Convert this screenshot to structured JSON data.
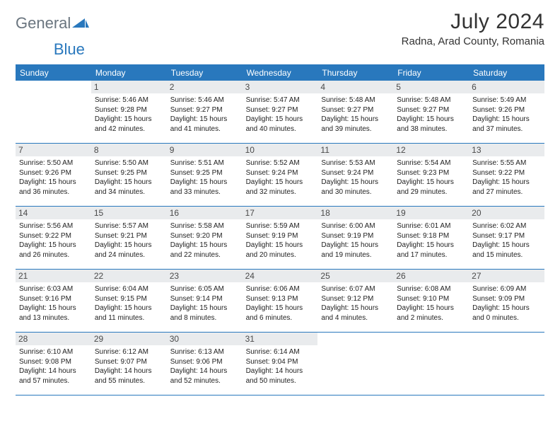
{
  "logo": {
    "text1": "General",
    "text2": "Blue"
  },
  "title": "July 2024",
  "location": "Radna, Arad County, Romania",
  "colors": {
    "accent": "#2978bd",
    "dayHeaderBg": "#e9ebed",
    "text": "#333333",
    "logoGray": "#6a757f"
  },
  "daysOfWeek": [
    "Sunday",
    "Monday",
    "Tuesday",
    "Wednesday",
    "Thursday",
    "Friday",
    "Saturday"
  ],
  "weeks": [
    [
      {
        "n": "",
        "lines": []
      },
      {
        "n": "1",
        "lines": [
          "Sunrise: 5:46 AM",
          "Sunset: 9:28 PM",
          "Daylight: 15 hours",
          "and 42 minutes."
        ]
      },
      {
        "n": "2",
        "lines": [
          "Sunrise: 5:46 AM",
          "Sunset: 9:27 PM",
          "Daylight: 15 hours",
          "and 41 minutes."
        ]
      },
      {
        "n": "3",
        "lines": [
          "Sunrise: 5:47 AM",
          "Sunset: 9:27 PM",
          "Daylight: 15 hours",
          "and 40 minutes."
        ]
      },
      {
        "n": "4",
        "lines": [
          "Sunrise: 5:48 AM",
          "Sunset: 9:27 PM",
          "Daylight: 15 hours",
          "and 39 minutes."
        ]
      },
      {
        "n": "5",
        "lines": [
          "Sunrise: 5:48 AM",
          "Sunset: 9:27 PM",
          "Daylight: 15 hours",
          "and 38 minutes."
        ]
      },
      {
        "n": "6",
        "lines": [
          "Sunrise: 5:49 AM",
          "Sunset: 9:26 PM",
          "Daylight: 15 hours",
          "and 37 minutes."
        ]
      }
    ],
    [
      {
        "n": "7",
        "lines": [
          "Sunrise: 5:50 AM",
          "Sunset: 9:26 PM",
          "Daylight: 15 hours",
          "and 36 minutes."
        ]
      },
      {
        "n": "8",
        "lines": [
          "Sunrise: 5:50 AM",
          "Sunset: 9:25 PM",
          "Daylight: 15 hours",
          "and 34 minutes."
        ]
      },
      {
        "n": "9",
        "lines": [
          "Sunrise: 5:51 AM",
          "Sunset: 9:25 PM",
          "Daylight: 15 hours",
          "and 33 minutes."
        ]
      },
      {
        "n": "10",
        "lines": [
          "Sunrise: 5:52 AM",
          "Sunset: 9:24 PM",
          "Daylight: 15 hours",
          "and 32 minutes."
        ]
      },
      {
        "n": "11",
        "lines": [
          "Sunrise: 5:53 AM",
          "Sunset: 9:24 PM",
          "Daylight: 15 hours",
          "and 30 minutes."
        ]
      },
      {
        "n": "12",
        "lines": [
          "Sunrise: 5:54 AM",
          "Sunset: 9:23 PM",
          "Daylight: 15 hours",
          "and 29 minutes."
        ]
      },
      {
        "n": "13",
        "lines": [
          "Sunrise: 5:55 AM",
          "Sunset: 9:22 PM",
          "Daylight: 15 hours",
          "and 27 minutes."
        ]
      }
    ],
    [
      {
        "n": "14",
        "lines": [
          "Sunrise: 5:56 AM",
          "Sunset: 9:22 PM",
          "Daylight: 15 hours",
          "and 26 minutes."
        ]
      },
      {
        "n": "15",
        "lines": [
          "Sunrise: 5:57 AM",
          "Sunset: 9:21 PM",
          "Daylight: 15 hours",
          "and 24 minutes."
        ]
      },
      {
        "n": "16",
        "lines": [
          "Sunrise: 5:58 AM",
          "Sunset: 9:20 PM",
          "Daylight: 15 hours",
          "and 22 minutes."
        ]
      },
      {
        "n": "17",
        "lines": [
          "Sunrise: 5:59 AM",
          "Sunset: 9:19 PM",
          "Daylight: 15 hours",
          "and 20 minutes."
        ]
      },
      {
        "n": "18",
        "lines": [
          "Sunrise: 6:00 AM",
          "Sunset: 9:19 PM",
          "Daylight: 15 hours",
          "and 19 minutes."
        ]
      },
      {
        "n": "19",
        "lines": [
          "Sunrise: 6:01 AM",
          "Sunset: 9:18 PM",
          "Daylight: 15 hours",
          "and 17 minutes."
        ]
      },
      {
        "n": "20",
        "lines": [
          "Sunrise: 6:02 AM",
          "Sunset: 9:17 PM",
          "Daylight: 15 hours",
          "and 15 minutes."
        ]
      }
    ],
    [
      {
        "n": "21",
        "lines": [
          "Sunrise: 6:03 AM",
          "Sunset: 9:16 PM",
          "Daylight: 15 hours",
          "and 13 minutes."
        ]
      },
      {
        "n": "22",
        "lines": [
          "Sunrise: 6:04 AM",
          "Sunset: 9:15 PM",
          "Daylight: 15 hours",
          "and 11 minutes."
        ]
      },
      {
        "n": "23",
        "lines": [
          "Sunrise: 6:05 AM",
          "Sunset: 9:14 PM",
          "Daylight: 15 hours",
          "and 8 minutes."
        ]
      },
      {
        "n": "24",
        "lines": [
          "Sunrise: 6:06 AM",
          "Sunset: 9:13 PM",
          "Daylight: 15 hours",
          "and 6 minutes."
        ]
      },
      {
        "n": "25",
        "lines": [
          "Sunrise: 6:07 AM",
          "Sunset: 9:12 PM",
          "Daylight: 15 hours",
          "and 4 minutes."
        ]
      },
      {
        "n": "26",
        "lines": [
          "Sunrise: 6:08 AM",
          "Sunset: 9:10 PM",
          "Daylight: 15 hours",
          "and 2 minutes."
        ]
      },
      {
        "n": "27",
        "lines": [
          "Sunrise: 6:09 AM",
          "Sunset: 9:09 PM",
          "Daylight: 15 hours",
          "and 0 minutes."
        ]
      }
    ],
    [
      {
        "n": "28",
        "lines": [
          "Sunrise: 6:10 AM",
          "Sunset: 9:08 PM",
          "Daylight: 14 hours",
          "and 57 minutes."
        ]
      },
      {
        "n": "29",
        "lines": [
          "Sunrise: 6:12 AM",
          "Sunset: 9:07 PM",
          "Daylight: 14 hours",
          "and 55 minutes."
        ]
      },
      {
        "n": "30",
        "lines": [
          "Sunrise: 6:13 AM",
          "Sunset: 9:06 PM",
          "Daylight: 14 hours",
          "and 52 minutes."
        ]
      },
      {
        "n": "31",
        "lines": [
          "Sunrise: 6:14 AM",
          "Sunset: 9:04 PM",
          "Daylight: 14 hours",
          "and 50 minutes."
        ]
      },
      {
        "n": "",
        "lines": []
      },
      {
        "n": "",
        "lines": []
      },
      {
        "n": "",
        "lines": []
      }
    ]
  ]
}
